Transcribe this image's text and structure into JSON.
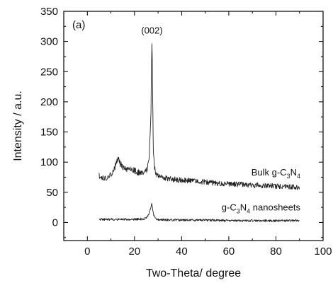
{
  "chart_data": {
    "type": "line",
    "panel_label": "(a)",
    "xlabel": "Two-Theta/ degree",
    "ylabel": "Intensity / a.u.",
    "xlim": [
      -10,
      100
    ],
    "ylim": [
      -30,
      350
    ],
    "x_ticks": [
      0,
      20,
      40,
      60,
      80,
      100
    ],
    "y_ticks": [
      0,
      50,
      100,
      150,
      200,
      250,
      300,
      350
    ],
    "annotations": [
      {
        "text": "(002)",
        "x": 27.4,
        "y": 318
      }
    ],
    "series": [
      {
        "name": "Bulk g-C3N4",
        "label_main": "Bulk g-C",
        "label_sub1": "3",
        "label_mid": "N",
        "label_sub2": "4",
        "label_tail": "",
        "color": "#222222",
        "x": [
          5,
          7,
          9,
          10,
          11,
          12,
          13,
          14,
          15,
          16,
          17,
          18,
          19,
          20,
          21,
          22,
          23,
          24,
          25,
          25.5,
          26,
          26.5,
          27,
          27.2,
          27.4,
          27.6,
          27.8,
          28,
          28.5,
          29,
          30,
          32,
          35,
          40,
          45,
          50,
          55,
          60,
          65,
          70,
          75,
          80,
          85,
          90
        ],
        "y": [
          78,
          72,
          76,
          80,
          85,
          95,
          105,
          98,
          92,
          90,
          88,
          89,
          87,
          86,
          84,
          82,
          80,
          82,
          86,
          90,
          100,
          130,
          190,
          260,
          302,
          255,
          180,
          120,
          92,
          83,
          78,
          75,
          72,
          70,
          69,
          67,
          65,
          64,
          63,
          62,
          61,
          60,
          59,
          58
        ]
      },
      {
        "name": "g-C3N4 nanosheets",
        "label_main": "g-C",
        "label_sub1": "3",
        "label_mid": "N",
        "label_sub2": "4",
        "label_tail": " nanosheets",
        "color": "#222222",
        "x": [
          5,
          10,
          15,
          20,
          24,
          25,
          26,
          26.5,
          27,
          27.3,
          27.6,
          28,
          28.5,
          29,
          30,
          35,
          40,
          50,
          60,
          70,
          80,
          90
        ],
        "y": [
          5,
          5,
          5,
          5,
          6,
          8,
          12,
          18,
          25,
          30,
          24,
          15,
          9,
          6,
          5,
          4,
          4,
          4,
          3,
          3,
          3,
          3
        ]
      }
    ]
  }
}
